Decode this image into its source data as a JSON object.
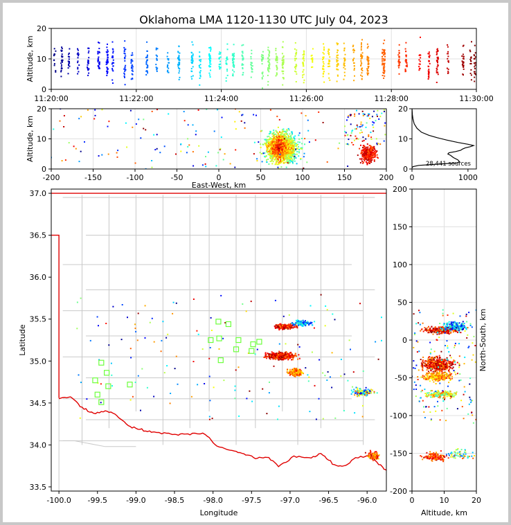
{
  "title": "Oklahoma LMA 1120-1130 UTC July 04, 2023",
  "chart_data": [
    {
      "id": "time_height",
      "type": "scatter",
      "ylabel": "Altitude, km",
      "xlim": [
        "11:20:00",
        "11:30:00"
      ],
      "ylim": [
        0,
        20
      ],
      "x_ticks": [
        "11:20:00",
        "11:22:00",
        "11:24:00",
        "11:26:00",
        "11:28:00",
        "11:30:00"
      ],
      "y_ticks": [
        0,
        10,
        20
      ],
      "color_by": "time",
      "colormap": "jet",
      "grid": true
    },
    {
      "id": "ew_height",
      "type": "scatter",
      "xlabel": "East-West, km",
      "ylabel": "Altitude, km",
      "xlim": [
        -200,
        200
      ],
      "ylim": [
        0,
        20
      ],
      "x_ticks": [
        -200,
        -150,
        -100,
        -50,
        0,
        50,
        100,
        150,
        200
      ],
      "y_ticks": [
        0,
        10,
        20
      ],
      "grid": true
    },
    {
      "id": "altitude_histogram",
      "type": "line",
      "xlim": [
        0,
        1150
      ],
      "ylim": [
        0,
        20
      ],
      "x_ticks": [
        0,
        1000
      ],
      "y_ticks": [
        0,
        10,
        20
      ],
      "annotation": "28,441 sources",
      "profile": [
        [
          0,
          0.4
        ],
        [
          20,
          0.8
        ],
        [
          120,
          1.2
        ],
        [
          450,
          1.6
        ],
        [
          800,
          2.0
        ],
        [
          850,
          2.4
        ],
        [
          820,
          3.0
        ],
        [
          740,
          3.8
        ],
        [
          690,
          4.5
        ],
        [
          640,
          5.0
        ],
        [
          660,
          5.4
        ],
        [
          780,
          5.8
        ],
        [
          870,
          6.2
        ],
        [
          900,
          6.6
        ],
        [
          950,
          7.0
        ],
        [
          1040,
          7.4
        ],
        [
          1100,
          7.8
        ],
        [
          1000,
          8.2
        ],
        [
          820,
          8.8
        ],
        [
          620,
          9.6
        ],
        [
          450,
          10.4
        ],
        [
          300,
          11.2
        ],
        [
          170,
          12.2
        ],
        [
          90,
          13.5
        ],
        [
          40,
          15
        ],
        [
          18,
          16.5
        ],
        [
          7,
          18
        ],
        [
          2,
          19.5
        ],
        [
          0,
          20
        ]
      ]
    },
    {
      "id": "plan_view",
      "type": "scatter",
      "xlabel": "Longitude",
      "ylabel": "Latitude",
      "xlim": [
        -100.1,
        -95.75
      ],
      "ylim": [
        33.45,
        37.05
      ],
      "x_ticks": [
        -100.0,
        -99.5,
        -99.0,
        -98.5,
        -98.0,
        -97.5,
        -97.0,
        -96.5,
        -96.0
      ],
      "y_ticks": [
        33.5,
        34.0,
        34.5,
        35.0,
        35.5,
        36.0,
        36.5,
        37.0
      ],
      "stations": [
        [
          -97.93,
          35.47
        ],
        [
          -97.8,
          35.44
        ],
        [
          -98.03,
          35.25
        ],
        [
          -97.92,
          35.27
        ],
        [
          -97.9,
          35.01
        ],
        [
          -97.67,
          35.25
        ],
        [
          -97.7,
          35.14
        ],
        [
          -97.48,
          35.2
        ],
        [
          -97.4,
          35.23
        ],
        [
          -97.5,
          35.12
        ],
        [
          -99.45,
          34.98
        ],
        [
          -99.38,
          34.86
        ],
        [
          -99.53,
          34.77
        ],
        [
          -99.36,
          34.7
        ],
        [
          -99.5,
          34.6
        ],
        [
          -99.45,
          34.51
        ],
        [
          -99.08,
          34.72
        ]
      ]
    },
    {
      "id": "ns_height",
      "type": "scatter",
      "xlabel": "Altitude, km",
      "ylabel": "North-South, km",
      "xlim": [
        0,
        20
      ],
      "ylim": [
        -200,
        200
      ],
      "x_ticks": [
        0,
        10,
        20
      ],
      "y_ticks": [
        -200,
        -150,
        -100,
        -50,
        0,
        50,
        100,
        150,
        200
      ],
      "grid": true
    }
  ]
}
